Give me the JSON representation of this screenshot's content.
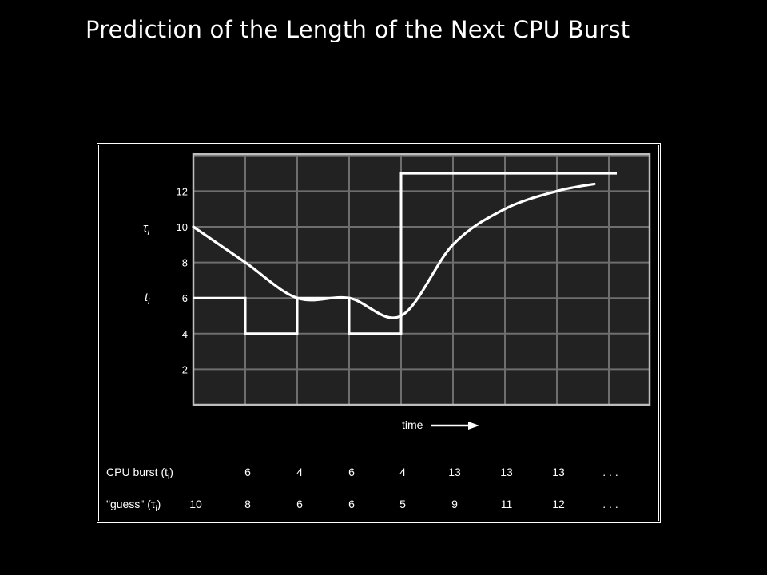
{
  "slide": {
    "title": "Prediction of the Length of the Next CPU Burst"
  },
  "chart_data": {
    "type": "line",
    "y_ticks": [
      "2",
      "4",
      "6",
      "8",
      "10",
      "12"
    ],
    "y_symbols": {
      "tau": "τ",
      "t": "t",
      "subscript": "i"
    },
    "time_label": "time",
    "grid": true,
    "series": [
      {
        "key": "burst",
        "step": true,
        "values": [
          6,
          4,
          6,
          4,
          13,
          13,
          13
        ]
      },
      {
        "key": "guess",
        "smooth": true,
        "values": [
          10,
          8,
          6,
          6,
          5,
          9,
          11,
          12
        ]
      }
    ],
    "table": {
      "rows": [
        {
          "label_main": "CPU burst (t",
          "label_sub": "i",
          "label_close": ")",
          "cells": [
            "6",
            "4",
            "6",
            "4",
            "13",
            "13",
            "13",
            ". . ."
          ]
        },
        {
          "label_main": "\"guess\" (τ",
          "label_sub": "i",
          "label_close": ")",
          "cells": [
            "10",
            "8",
            "6",
            "6",
            "5",
            "9",
            "11",
            "12",
            ". . ."
          ]
        }
      ]
    }
  },
  "colors": {
    "background": "#000000",
    "plot_bg": "#222222",
    "grid": "#6e6e6e",
    "line": "#ffffff"
  }
}
